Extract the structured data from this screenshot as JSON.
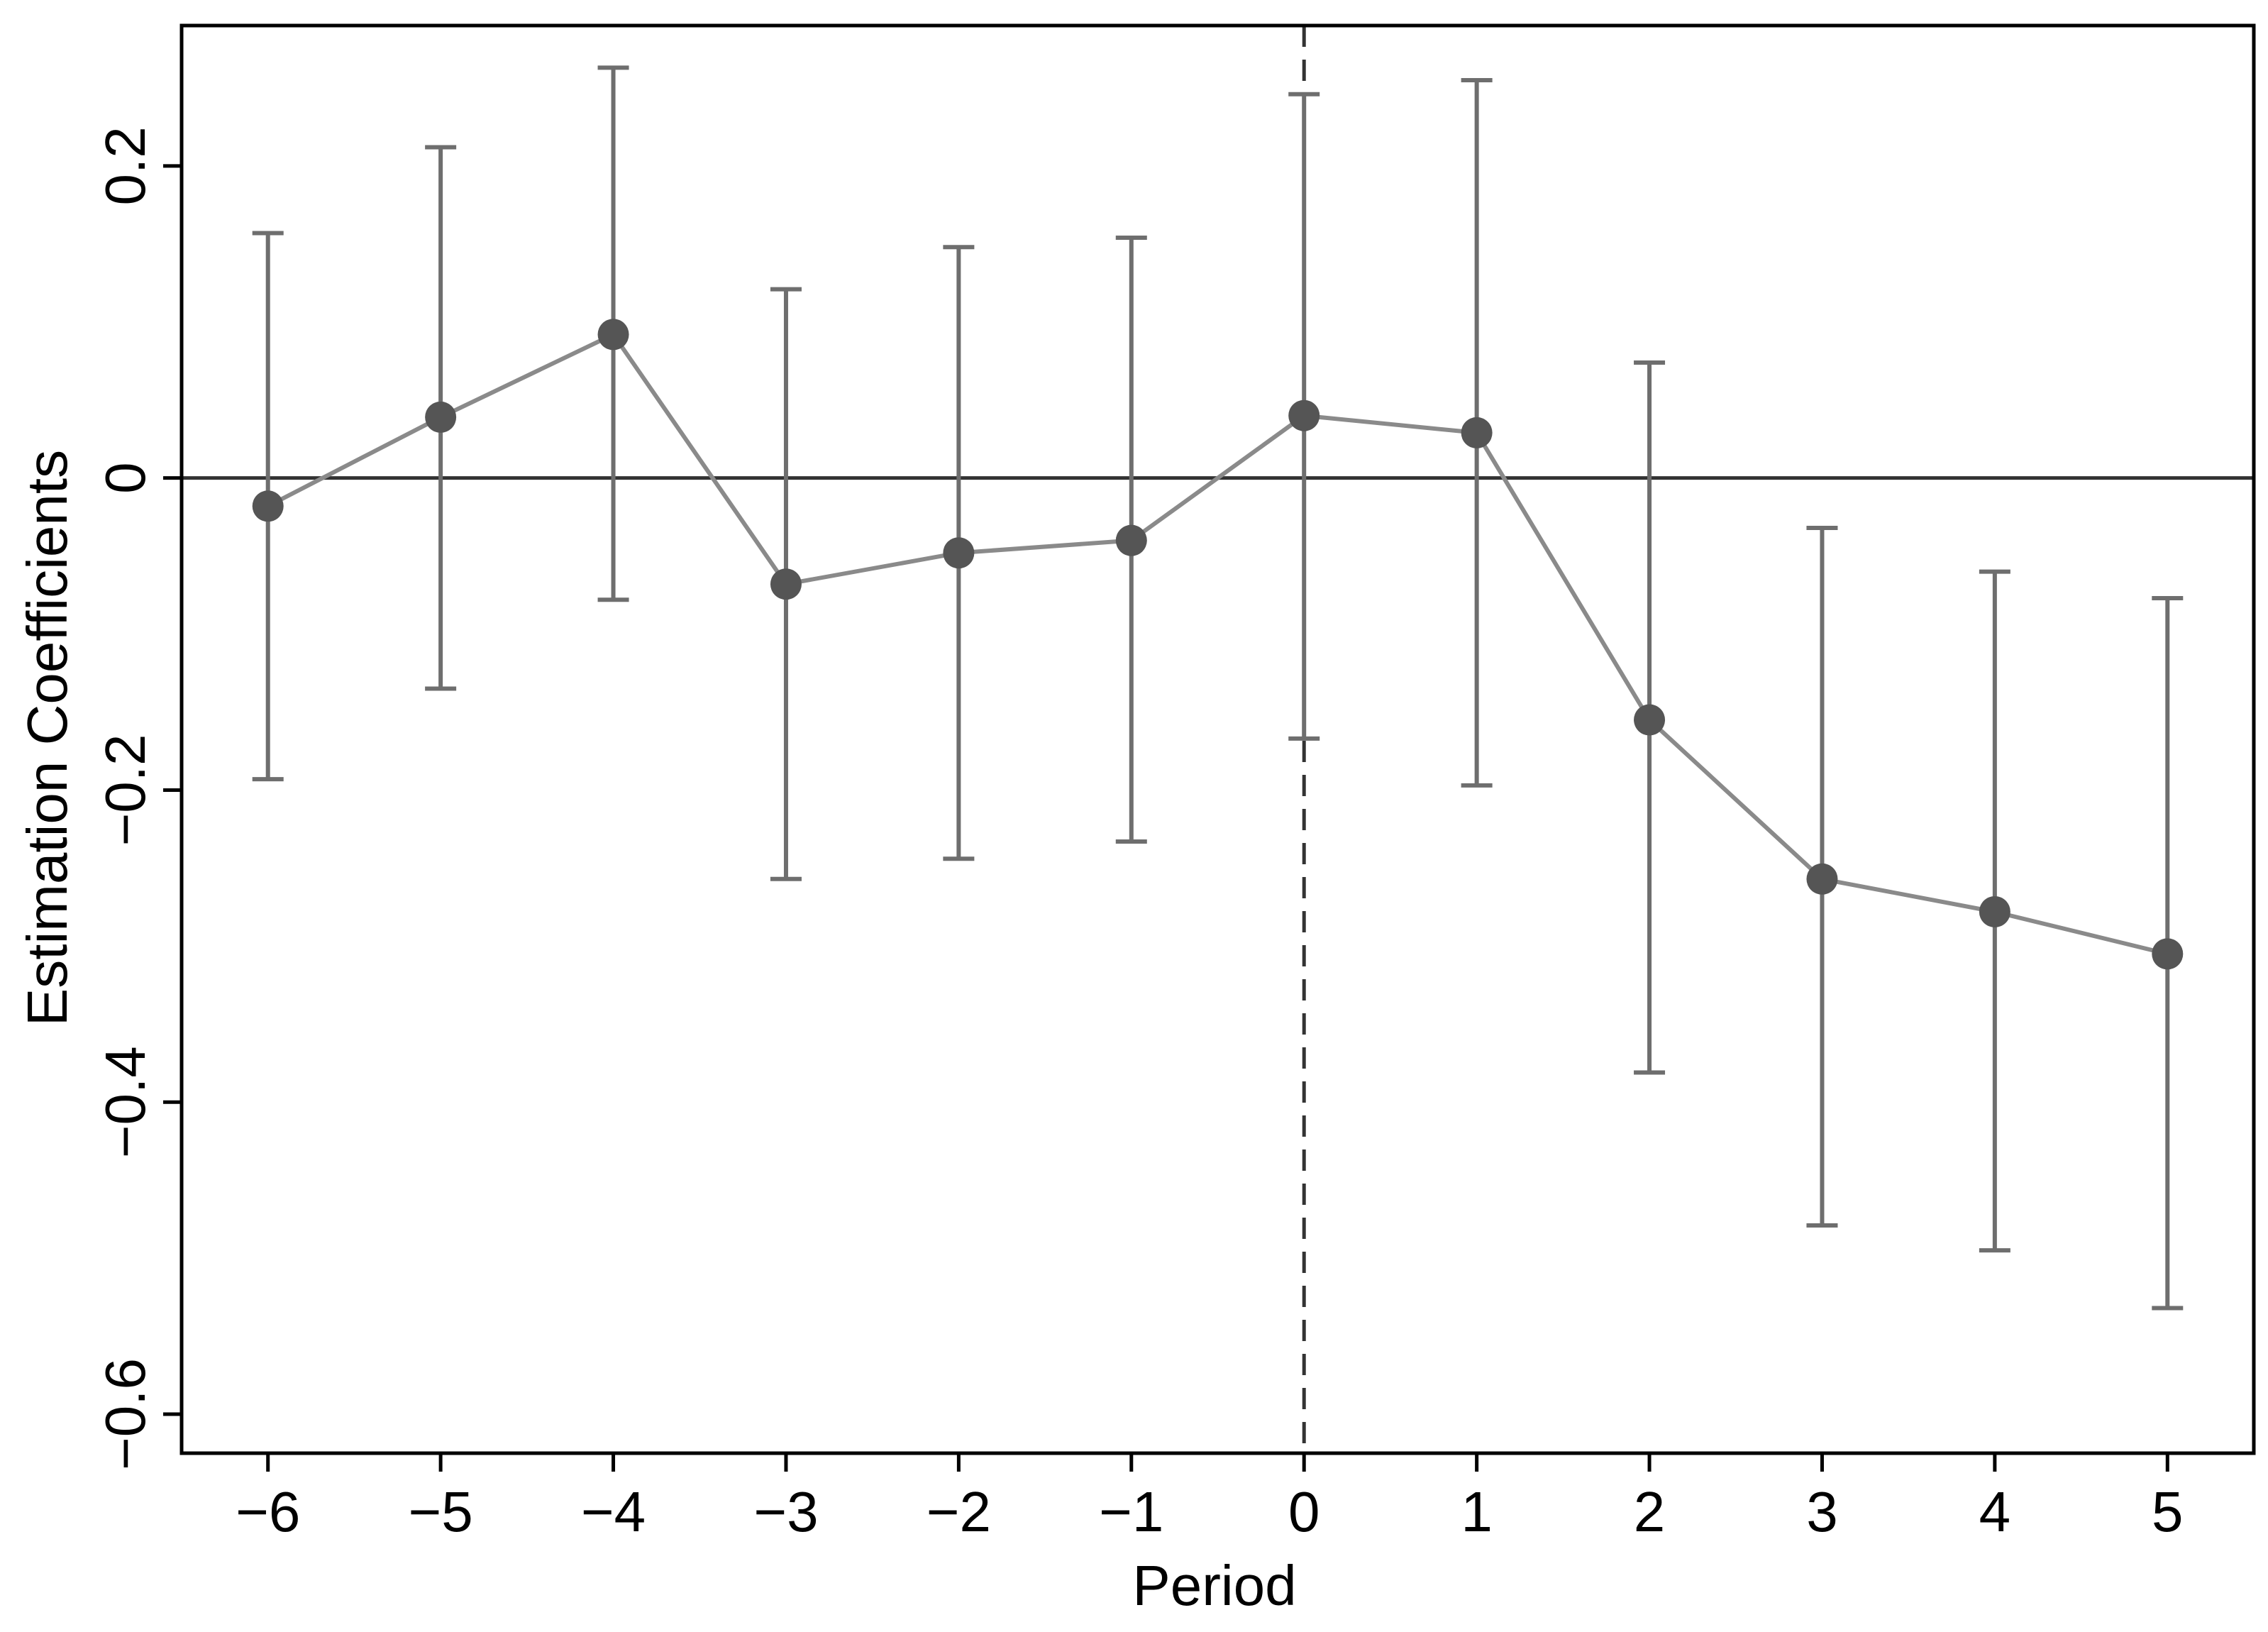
{
  "chart_data": {
    "type": "scatter",
    "title": "",
    "xlabel": "Period",
    "ylabel": "Estimation Coefficients",
    "x": [
      -6,
      -5,
      -4,
      -3,
      -2,
      -1,
      0,
      1,
      2,
      3,
      4,
      5
    ],
    "x_tick_labels": [
      "−6",
      "−5",
      "−4",
      "−3",
      "−2",
      "−1",
      "0",
      "1",
      "2",
      "3",
      "4",
      "5"
    ],
    "y_ticks": [
      -0.6,
      -0.4,
      -0.2,
      0,
      0.2
    ],
    "y_tick_labels": [
      "−0.6",
      "−0.4",
      "−0.2",
      "0",
      "0.2"
    ],
    "xlim": [
      -6.5,
      5.5
    ],
    "ylim": [
      -0.625,
      0.29
    ],
    "series": [
      {
        "values": [
          -0.018,
          0.039,
          0.092,
          -0.068,
          -0.048,
          -0.04,
          0.04,
          0.029,
          -0.155,
          -0.257,
          -0.278,
          -0.305
        ],
        "ci_lower": [
          -0.193,
          -0.135,
          -0.078,
          -0.257,
          -0.244,
          -0.233,
          -0.167,
          -0.197,
          -0.381,
          -0.479,
          -0.495,
          -0.532
        ],
        "ci_upper": [
          0.157,
          0.212,
          0.263,
          0.121,
          0.148,
          0.154,
          0.246,
          0.255,
          0.074,
          -0.032,
          -0.06,
          -0.077
        ]
      }
    ],
    "reference_lines": {
      "horizontal_y": 0,
      "vertical_dashed_x": 0
    },
    "grid": false,
    "colors": {
      "line": "#8a8a8a",
      "marker": "#555555",
      "error_bar": "#6e6e6e",
      "reference": "#333333",
      "axis": "#000000"
    }
  }
}
